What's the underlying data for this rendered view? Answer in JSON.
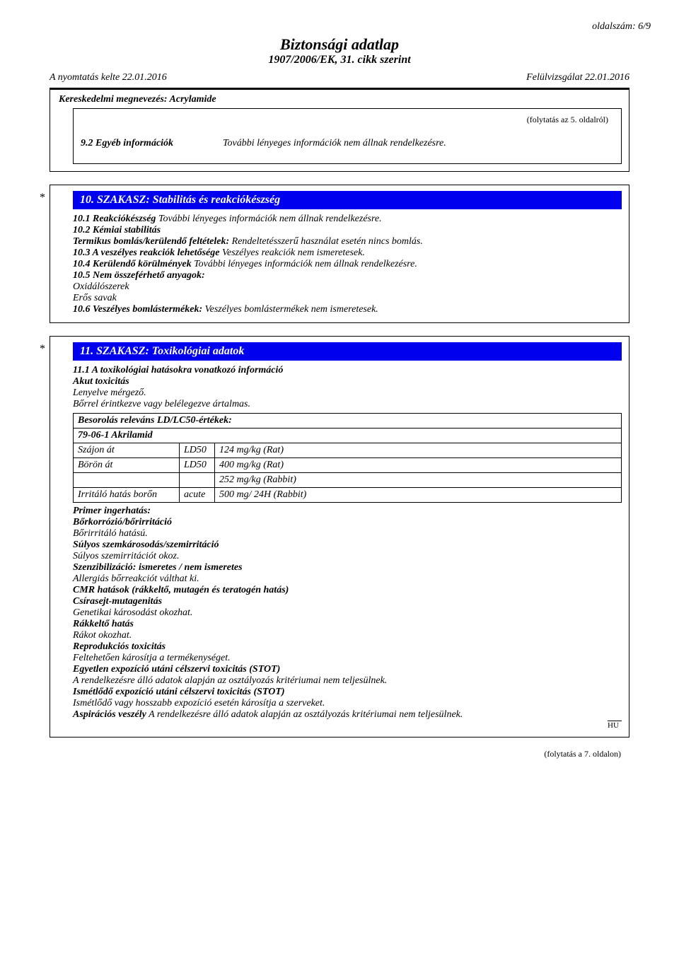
{
  "page_number": "oldalszám: 6/9",
  "title": "Biztonsági adatlap",
  "subtitle": "1907/2006/EK, 31. cikk szerint",
  "print_date_label": "A nyomtatás kelte 22.01.2016",
  "revision_label": "Felülvizsgálat 22.01.2016",
  "trade_name": "Kereskedelmi megnevezés: Acrylamide",
  "cont_from": "(folytatás az 5. oldalról)",
  "row92_label": "9.2 Egyéb információk",
  "row92_value": "További lényeges információk nem állnak rendelkezésre.",
  "section10_title": "10. SZAKASZ: Stabilitás és reakciókészség",
  "s10_1_label": "10.1 Reakciókészség",
  "s10_1_text": " További lényeges információk nem állnak rendelkezésre.",
  "s10_2_label": "10.2 Kémiai stabilitás",
  "s10_2_sub_label": "Termikus bomlás/kerülendő feltételek:",
  "s10_2_sub_text": " Rendeltetésszerű használat esetén nincs bomlás.",
  "s10_3_label": "10.3 A veszélyes reakciók lehetősége",
  "s10_3_text": " Veszélyes reakciók nem ismeretesek.",
  "s10_4_label": "10.4 Kerülendő körülmények",
  "s10_4_text": " További lényeges információk nem állnak rendelkezésre.",
  "s10_5_label": "10.5 Nem összeférhető anyagok:",
  "s10_5_line1": "Oxidálószerek",
  "s10_5_line2": "Erős savak",
  "s10_6_label": "10.6 Veszélyes bomlástermékek:",
  "s10_6_text": " Veszélyes bomlástermékek nem ismeretesek.",
  "section11_title": "11. SZAKASZ: Toxikológiai adatok",
  "s11_1_label": "11.1 A toxikológiai hatásokra vonatkozó információ",
  "s11_acute_label": "Akut toxicitás",
  "s11_acute_1": "Lenyelve mérgező.",
  "s11_acute_2": "Bőrrel érintkezve vagy belélegezve ártalmas.",
  "ldlc_header": "Besorolás releváns LD/LC50-értékek:",
  "ldlc_substance": "79-06-1 Akrilamid",
  "ldlc_rows": [
    {
      "route": "Szájon át",
      "type": "LD50",
      "value": "124 mg/kg (Rat)"
    },
    {
      "route": "Börön át",
      "type": "LD50",
      "value": "400 mg/kg (Rat)"
    },
    {
      "route": "",
      "type": "",
      "value": "252 mg/kg (Rabbit)"
    },
    {
      "route": "Irritáló hatás borőn",
      "type": "acute",
      "value": "500 mg/ 24H (Rabbit)"
    }
  ],
  "primer_label": "Primer ingerhatás:",
  "skin_corr_label": "Bőrkorrózió/bőrirritáció",
  "skin_corr_text": "Bőrirritáló hatású.",
  "eye_label": "Súlyos szemkárosodás/szemirritáció",
  "eye_text": "Súlyos szemirritációt okoz.",
  "sens_label": "Szenzibilizáció: ismeretes / nem ismeretes",
  "sens_text": "Allergiás bőrreakciót válthat ki.",
  "cmr_label": "CMR hatások (rákkeltő, mutagén és teratogén hatás)",
  "germ_label": "Csírasejt-mutagenitás",
  "germ_text": "Genetikai károsodást okozhat.",
  "carc_label": "Rákkeltő hatás",
  "carc_text": "Rákot okozhat.",
  "repro_label": "Reprodukciós toxicitás",
  "repro_text": "Feltehetően károsítja a termékenységet.",
  "stot_se_label": "Egyetlen expozíció utáni célszervi toxicitás (STOT)",
  "stot_se_text": "A rendelkezésre álló adatok alapján az osztályozás kritériumai nem teljesülnek.",
  "stot_re_label": "Ismétlődő expozíció utáni célszervi toxicitás (STOT)",
  "stot_re_text": "Ismétlődő vagy hosszabb expozíció esetén károsítja a szerveket.",
  "asp_label": "Aspirációs veszély",
  "asp_text": " A rendelkezésre álló adatok alapján az osztályozás kritériumai nem teljesülnek.",
  "hu_tag": "HU",
  "cont_to": "(folytatás a 7. oldalon)"
}
